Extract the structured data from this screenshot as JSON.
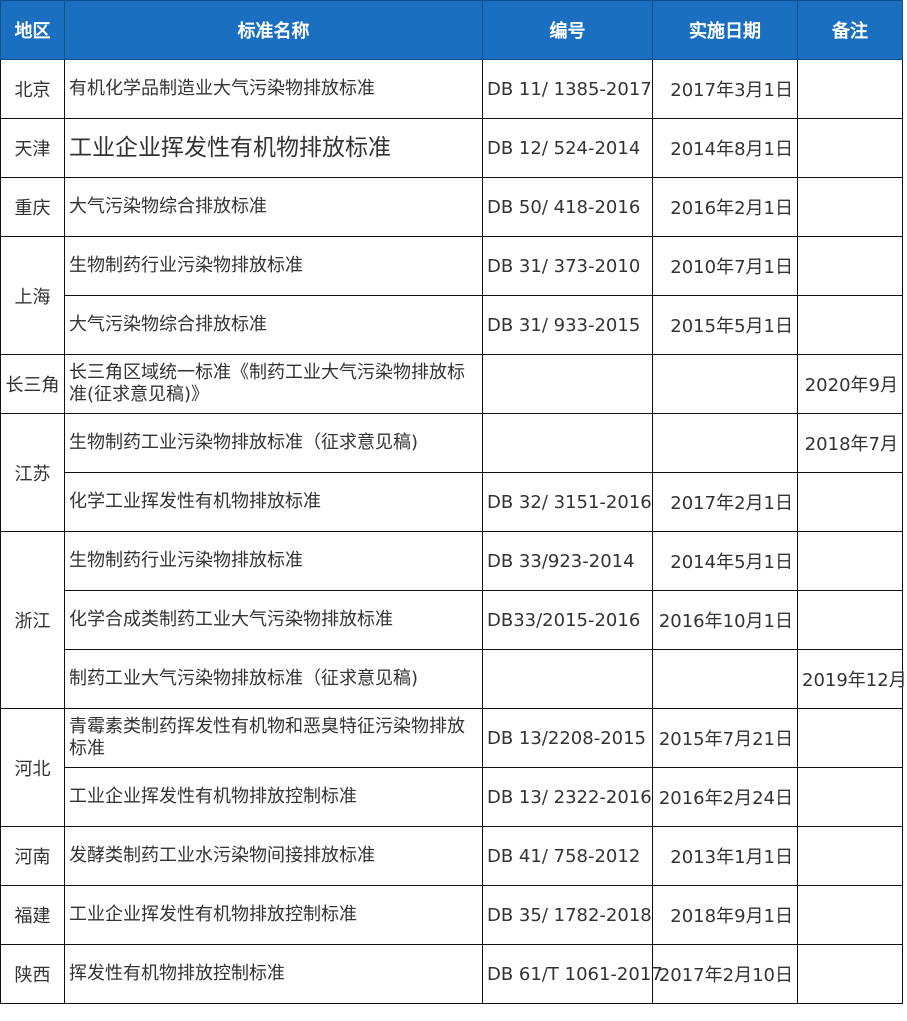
{
  "colors": {
    "header_bg": "#1b6fc1",
    "header_text": "#ffffff",
    "border": "#111111"
  },
  "header": {
    "region": "地区",
    "name": "标准名称",
    "code": "编号",
    "date": "实施日期",
    "note": "备注"
  },
  "rows": [
    {
      "region": "北京",
      "name": "有机化学品制造业大气污染物排放标准",
      "code": "DB 11/ 1385-2017",
      "date": "2017年3月1日",
      "note": ""
    },
    {
      "region": "天津",
      "name": "工业企业挥发性有机物排放标准",
      "code": "DB 12/ 524-2014",
      "date": "2014年8月1日",
      "note": ""
    },
    {
      "region": "重庆",
      "name": "大气污染物综合排放标准",
      "code": "DB 50/ 418-2016",
      "date": "2016年2月1日",
      "note": ""
    },
    {
      "region": "上海",
      "name": "生物制药行业污染物排放标准",
      "code": "DB 31/ 373-2010",
      "date": "2010年7月1日",
      "note": ""
    },
    {
      "region": "",
      "name": "大气污染物综合排放标准",
      "code": "DB 31/ 933-2015",
      "date": "2015年5月1日",
      "note": ""
    },
    {
      "region": "长三角",
      "name": "长三角区域统一标准《制药工业大气污染物排放标准(征求意见稿)》",
      "code": "",
      "date": "",
      "note": "2020年9月"
    },
    {
      "region": "江苏",
      "name": "生物制药工业污染物排放标准（征求意见稿)",
      "code": "",
      "date": "",
      "note": "2018年7月"
    },
    {
      "region": "",
      "name": "化学工业挥发性有机物排放标准",
      "code": "DB 32/ 3151-2016",
      "date": "2017年2月1日",
      "note": ""
    },
    {
      "region": "浙江",
      "name": "生物制药行业污染物排放标准",
      "code": "DB 33/923-2014",
      "date": "2014年5月1日",
      "note": ""
    },
    {
      "region": "",
      "name": "化学合成类制药工业大气污染物排放标准",
      "code": "DB33/2015-2016",
      "date": "2016年10月1日",
      "note": ""
    },
    {
      "region": "",
      "name": "制药工业大气污染物排放标准（征求意见稿)",
      "code": "",
      "date": "",
      "note": "2019年12月"
    },
    {
      "region": "河北",
      "name": "青霉素类制药挥发性有机物和恶臭特征污染物排放标准",
      "code": "DB 13/2208-2015",
      "date": "2015年7月21日",
      "note": ""
    },
    {
      "region": "",
      "name": "工业企业挥发性有机物排放控制标准",
      "code": "DB 13/ 2322-2016",
      "date": "2016年2月24日",
      "note": ""
    },
    {
      "region": "河南",
      "name": "发酵类制药工业水污染物间接排放标准",
      "code": "DB 41/ 758-2012",
      "date": "2013年1月1日",
      "note": ""
    },
    {
      "region": "福建",
      "name": "工业企业挥发性有机物排放控制标准",
      "code": "DB 35/ 1782-2018",
      "date": "2018年9月1日",
      "note": ""
    },
    {
      "region": "陕西",
      "name": "挥发性有机物排放控制标准",
      "code": "DB 61/T 1061-2017",
      "date": "2017年2月10日",
      "note": ""
    }
  ]
}
